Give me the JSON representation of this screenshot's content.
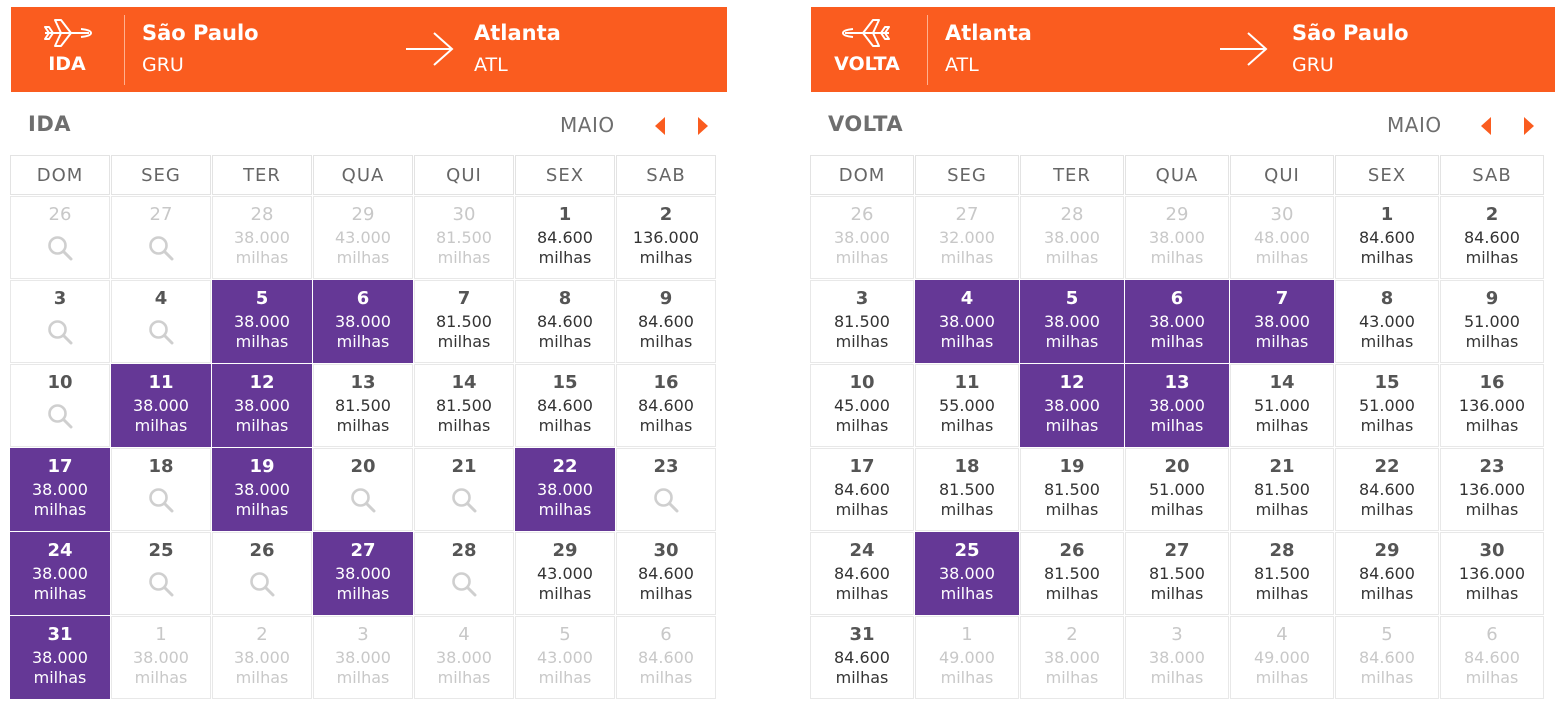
{
  "ida": {
    "header": {
      "label": "IDA",
      "from_city": "São Paulo",
      "from_code": "GRU",
      "to_city": "Atlanta",
      "to_code": "ATL"
    },
    "title": "IDA",
    "month": "MAIO",
    "weekdays": [
      "DOM",
      "SEG",
      "TER",
      "QUA",
      "QUI",
      "SEX",
      "SAB"
    ],
    "weeks": [
      [
        {
          "day": "26",
          "off": true,
          "search": true
        },
        {
          "day": "27",
          "off": true,
          "search": true
        },
        {
          "day": "28",
          "off": true,
          "price": "38.000",
          "unit": "milhas"
        },
        {
          "day": "29",
          "off": true,
          "price": "43.000",
          "unit": "milhas"
        },
        {
          "day": "30",
          "off": true,
          "price": "81.500",
          "unit": "milhas"
        },
        {
          "day": "1",
          "price": "84.600",
          "unit": "milhas"
        },
        {
          "day": "2",
          "price": "136.000",
          "unit": "milhas"
        }
      ],
      [
        {
          "day": "3",
          "search": true
        },
        {
          "day": "4",
          "search": true
        },
        {
          "day": "5",
          "hl": true,
          "price": "38.000",
          "unit": "milhas"
        },
        {
          "day": "6",
          "hl": true,
          "price": "38.000",
          "unit": "milhas"
        },
        {
          "day": "7",
          "price": "81.500",
          "unit": "milhas"
        },
        {
          "day": "8",
          "price": "84.600",
          "unit": "milhas"
        },
        {
          "day": "9",
          "price": "84.600",
          "unit": "milhas"
        }
      ],
      [
        {
          "day": "10",
          "search": true
        },
        {
          "day": "11",
          "hl": true,
          "price": "38.000",
          "unit": "milhas"
        },
        {
          "day": "12",
          "hl": true,
          "price": "38.000",
          "unit": "milhas"
        },
        {
          "day": "13",
          "price": "81.500",
          "unit": "milhas"
        },
        {
          "day": "14",
          "price": "81.500",
          "unit": "milhas"
        },
        {
          "day": "15",
          "price": "84.600",
          "unit": "milhas"
        },
        {
          "day": "16",
          "price": "84.600",
          "unit": "milhas"
        }
      ],
      [
        {
          "day": "17",
          "hl": true,
          "price": "38.000",
          "unit": "milhas"
        },
        {
          "day": "18",
          "search": true
        },
        {
          "day": "19",
          "hl": true,
          "price": "38.000",
          "unit": "milhas"
        },
        {
          "day": "20",
          "search": true
        },
        {
          "day": "21",
          "search": true
        },
        {
          "day": "22",
          "hl": true,
          "price": "38.000",
          "unit": "milhas"
        },
        {
          "day": "23",
          "search": true
        }
      ],
      [
        {
          "day": "24",
          "hl": true,
          "price": "38.000",
          "unit": "milhas"
        },
        {
          "day": "25",
          "search": true
        },
        {
          "day": "26",
          "search": true
        },
        {
          "day": "27",
          "hl": true,
          "price": "38.000",
          "unit": "milhas"
        },
        {
          "day": "28",
          "search": true
        },
        {
          "day": "29",
          "price": "43.000",
          "unit": "milhas"
        },
        {
          "day": "30",
          "price": "84.600",
          "unit": "milhas"
        }
      ],
      [
        {
          "day": "31",
          "hl": true,
          "price": "38.000",
          "unit": "milhas"
        },
        {
          "day": "1",
          "off": true,
          "price": "38.000",
          "unit": "milhas"
        },
        {
          "day": "2",
          "off": true,
          "price": "38.000",
          "unit": "milhas"
        },
        {
          "day": "3",
          "off": true,
          "price": "38.000",
          "unit": "milhas"
        },
        {
          "day": "4",
          "off": true,
          "price": "38.000",
          "unit": "milhas"
        },
        {
          "day": "5",
          "off": true,
          "price": "43.000",
          "unit": "milhas"
        },
        {
          "day": "6",
          "off": true,
          "price": "84.600",
          "unit": "milhas"
        }
      ]
    ]
  },
  "volta": {
    "header": {
      "label": "VOLTA",
      "from_city": "Atlanta",
      "from_code": "ATL",
      "to_city": "São Paulo",
      "to_code": "GRU"
    },
    "title": "VOLTA",
    "month": "MAIO",
    "weekdays": [
      "DOM",
      "SEG",
      "TER",
      "QUA",
      "QUI",
      "SEX",
      "SAB"
    ],
    "weeks": [
      [
        {
          "day": "26",
          "off": true,
          "price": "38.000",
          "unit": "milhas"
        },
        {
          "day": "27",
          "off": true,
          "price": "32.000",
          "unit": "milhas"
        },
        {
          "day": "28",
          "off": true,
          "price": "38.000",
          "unit": "milhas"
        },
        {
          "day": "29",
          "off": true,
          "price": "38.000",
          "unit": "milhas"
        },
        {
          "day": "30",
          "off": true,
          "price": "48.000",
          "unit": "milhas"
        },
        {
          "day": "1",
          "price": "84.600",
          "unit": "milhas"
        },
        {
          "day": "2",
          "price": "84.600",
          "unit": "milhas"
        }
      ],
      [
        {
          "day": "3",
          "price": "81.500",
          "unit": "milhas"
        },
        {
          "day": "4",
          "hl": true,
          "price": "38.000",
          "unit": "milhas"
        },
        {
          "day": "5",
          "hl": true,
          "price": "38.000",
          "unit": "milhas"
        },
        {
          "day": "6",
          "hl": true,
          "price": "38.000",
          "unit": "milhas"
        },
        {
          "day": "7",
          "hl": true,
          "price": "38.000",
          "unit": "milhas"
        },
        {
          "day": "8",
          "price": "43.000",
          "unit": "milhas"
        },
        {
          "day": "9",
          "price": "51.000",
          "unit": "milhas"
        }
      ],
      [
        {
          "day": "10",
          "price": "45.000",
          "unit": "milhas"
        },
        {
          "day": "11",
          "price": "55.000",
          "unit": "milhas"
        },
        {
          "day": "12",
          "hl": true,
          "price": "38.000",
          "unit": "milhas"
        },
        {
          "day": "13",
          "hl": true,
          "price": "38.000",
          "unit": "milhas"
        },
        {
          "day": "14",
          "price": "51.000",
          "unit": "milhas"
        },
        {
          "day": "15",
          "price": "51.000",
          "unit": "milhas"
        },
        {
          "day": "16",
          "price": "136.000",
          "unit": "milhas"
        }
      ],
      [
        {
          "day": "17",
          "price": "84.600",
          "unit": "milhas"
        },
        {
          "day": "18",
          "price": "81.500",
          "unit": "milhas"
        },
        {
          "day": "19",
          "price": "81.500",
          "unit": "milhas"
        },
        {
          "day": "20",
          "price": "51.000",
          "unit": "milhas"
        },
        {
          "day": "21",
          "price": "81.500",
          "unit": "milhas"
        },
        {
          "day": "22",
          "price": "84.600",
          "unit": "milhas"
        },
        {
          "day": "23",
          "price": "136.000",
          "unit": "milhas"
        }
      ],
      [
        {
          "day": "24",
          "price": "84.600",
          "unit": "milhas"
        },
        {
          "day": "25",
          "hl": true,
          "price": "38.000",
          "unit": "milhas"
        },
        {
          "day": "26",
          "price": "81.500",
          "unit": "milhas"
        },
        {
          "day": "27",
          "price": "81.500",
          "unit": "milhas"
        },
        {
          "day": "28",
          "price": "81.500",
          "unit": "milhas"
        },
        {
          "day": "29",
          "price": "84.600",
          "unit": "milhas"
        },
        {
          "day": "30",
          "price": "136.000",
          "unit": "milhas"
        }
      ],
      [
        {
          "day": "31",
          "price": "84.600",
          "unit": "milhas"
        },
        {
          "day": "1",
          "off": true,
          "price": "49.000",
          "unit": "milhas"
        },
        {
          "day": "2",
          "off": true,
          "price": "38.000",
          "unit": "milhas"
        },
        {
          "day": "3",
          "off": true,
          "price": "38.000",
          "unit": "milhas"
        },
        {
          "day": "4",
          "off": true,
          "price": "49.000",
          "unit": "milhas"
        },
        {
          "day": "5",
          "off": true,
          "price": "84.600",
          "unit": "milhas"
        },
        {
          "day": "6",
          "off": true,
          "price": "84.600",
          "unit": "milhas"
        }
      ]
    ]
  },
  "icons": {
    "plane": "airplane-icon",
    "arrow": "arrow-right-icon",
    "prev": "prev-month-icon",
    "next": "next-month-icon",
    "search": "search-icon"
  },
  "colors": {
    "header": "#fa5c1f",
    "highlight": "#653896",
    "nav": "#fa5c1f"
  }
}
